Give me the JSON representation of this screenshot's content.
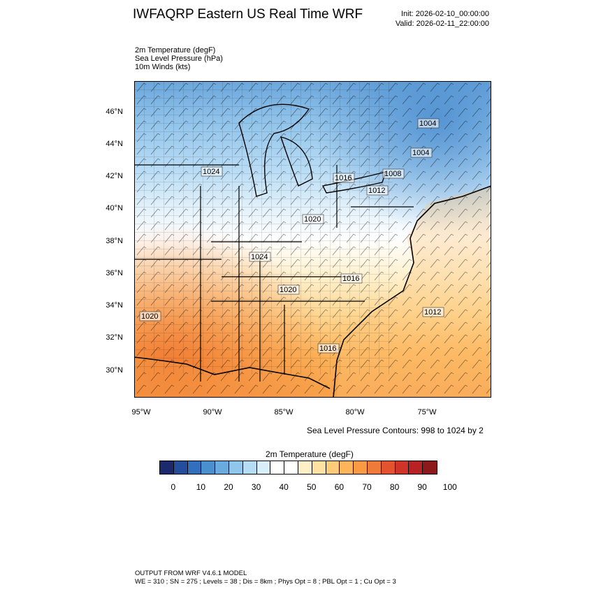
{
  "header": {
    "title": "IWFAQRP Eastern US Real Time WRF",
    "init": "Init: 2026-02-10_00:00:00",
    "valid": "Valid: 2026-02-11_22:00:00"
  },
  "fields": [
    "2m Temperature   (degF)",
    "Sea Level Pressure   (hPa)",
    "10m Winds   (kts)"
  ],
  "map": {
    "lat_ticks": [
      "46°N",
      "44°N",
      "42°N",
      "40°N",
      "38°N",
      "36°N",
      "34°N",
      "32°N",
      "30°N"
    ],
    "lon_ticks": [
      "95°W",
      "90°W",
      "85°W",
      "80°W",
      "75°W"
    ],
    "pressure_labels": [
      "1004",
      "1004",
      "1024",
      "1016",
      "1008",
      "1012",
      "1020",
      "1024",
      "1016",
      "1020",
      "1020",
      "1012",
      "1016"
    ]
  },
  "contour_note": "Sea Level Pressure Contours: 998 to 1024 by 2",
  "colorbar": {
    "title": "2m Temperature  (degF)",
    "labels": [
      "0",
      "10",
      "20",
      "30",
      "40",
      "50",
      "60",
      "70",
      "80",
      "90",
      "100"
    ],
    "colors": [
      "#1a2a6c",
      "#244e9c",
      "#3270bd",
      "#4a90cf",
      "#69abde",
      "#8fc6ec",
      "#b4dcf5",
      "#d8eefb",
      "#ffffff",
      "#ffffff",
      "#fff0c8",
      "#ffe2a2",
      "#ffcb77",
      "#fdb55a",
      "#f99a45",
      "#f07a3a",
      "#e4532f",
      "#cf3428",
      "#b82222",
      "#8c1a1a"
    ]
  },
  "footer": {
    "line1": "OUTPUT FROM WRF V4.6.1 MODEL",
    "line2": "WE = 310 ; SN = 275 ; Levels = 38 ; Dis = 8km ; Phys Opt = 8 ; PBL Opt = 1 ; Cu Opt = 3"
  }
}
